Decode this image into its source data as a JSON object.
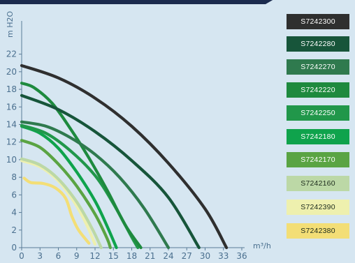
{
  "chart_data": {
    "type": "line",
    "xlabel": "m³/h",
    "ylabel": "m H2O",
    "xlim": [
      0,
      36
    ],
    "ylim": [
      0,
      23
    ],
    "x_ticks": [
      0,
      3,
      6,
      9,
      12,
      15,
      18,
      21,
      24,
      27,
      30,
      33,
      36
    ],
    "y_ticks": [
      0,
      2,
      4,
      6,
      8,
      10,
      12,
      14,
      16,
      18,
      20,
      22
    ],
    "grid": false,
    "legend_position": "right",
    "series": [
      {
        "name": "S7242300",
        "color": "#2f2f2f",
        "text_color": "#ffffff",
        "points": [
          [
            0,
            20.7
          ],
          [
            6,
            19.3
          ],
          [
            12,
            17.0
          ],
          [
            18,
            13.8
          ],
          [
            24,
            9.6
          ],
          [
            30,
            4.4
          ],
          [
            33.5,
            0
          ]
        ]
      },
      {
        "name": "S7242280",
        "color": "#17553a",
        "text_color": "#ffffff",
        "points": [
          [
            0,
            17.3
          ],
          [
            6,
            15.7
          ],
          [
            12,
            13.2
          ],
          [
            18,
            9.9
          ],
          [
            24,
            5.7
          ],
          [
            29,
            0
          ]
        ]
      },
      {
        "name": "S7242270",
        "color": "#2f7a4e",
        "text_color": "#ffffff",
        "points": [
          [
            0,
            14.3
          ],
          [
            4,
            13.8
          ],
          [
            8,
            12.5
          ],
          [
            12,
            10.6
          ],
          [
            16,
            8.0
          ],
          [
            20,
            4.5
          ],
          [
            24,
            0
          ]
        ]
      },
      {
        "name": "S7242220",
        "color": "#1e8a3e",
        "text_color": "#ffffff",
        "points": [
          [
            0,
            18.7
          ],
          [
            2,
            18.2
          ],
          [
            5,
            16.4
          ],
          [
            8,
            13.5
          ],
          [
            11,
            10.2
          ],
          [
            14,
            6.5
          ],
          [
            17,
            2.5
          ],
          [
            19.5,
            0
          ]
        ]
      },
      {
        "name": "S7242250",
        "color": "#21974a",
        "text_color": "#ffffff",
        "points": [
          [
            0,
            13.9
          ],
          [
            4,
            13.0
          ],
          [
            8,
            11.0
          ],
          [
            12,
            8.2
          ],
          [
            15,
            5.0
          ],
          [
            18,
            1.2
          ],
          [
            19,
            0
          ]
        ]
      },
      {
        "name": "S7242180",
        "color": "#0fa34c",
        "text_color": "#ffffff",
        "points": [
          [
            0,
            13.8
          ],
          [
            3,
            13.0
          ],
          [
            6,
            11.3
          ],
          [
            9,
            8.6
          ],
          [
            12,
            5.3
          ],
          [
            14,
            2.4
          ],
          [
            15.5,
            0
          ]
        ]
      },
      {
        "name": "S7242170",
        "color": "#5aa443",
        "text_color": "#ffffff",
        "points": [
          [
            0,
            12.2
          ],
          [
            3,
            11.4
          ],
          [
            6,
            9.5
          ],
          [
            9,
            7.0
          ],
          [
            12,
            3.8
          ],
          [
            14,
            1.0
          ],
          [
            14.5,
            0
          ]
        ]
      },
      {
        "name": "S7242160",
        "color": "#bcd8a6",
        "text_color": "#1c2b1c",
        "points": [
          [
            0,
            10.1
          ],
          [
            3,
            9.4
          ],
          [
            6,
            7.8
          ],
          [
            9,
            5.2
          ],
          [
            11.5,
            2.2
          ],
          [
            13,
            0
          ]
        ]
      },
      {
        "name": "S7242390",
        "color": "#eef0ae",
        "text_color": "#1c2b1c",
        "points": [
          [
            0,
            9.9
          ],
          [
            3,
            9.2
          ],
          [
            6,
            7.6
          ],
          [
            8.5,
            5.3
          ],
          [
            10.5,
            2.8
          ],
          [
            12,
            0.4
          ]
        ]
      },
      {
        "name": "S7242380",
        "color": "#f3de76",
        "text_color": "#1c2b1c",
        "points": [
          [
            0.4,
            7.9
          ],
          [
            1.5,
            7.4
          ],
          [
            3.5,
            7.3
          ],
          [
            5.5,
            6.8
          ],
          [
            7.2,
            5.6
          ],
          [
            8.2,
            3.6
          ],
          [
            9.3,
            2.0
          ],
          [
            11,
            0.5
          ]
        ]
      }
    ]
  }
}
